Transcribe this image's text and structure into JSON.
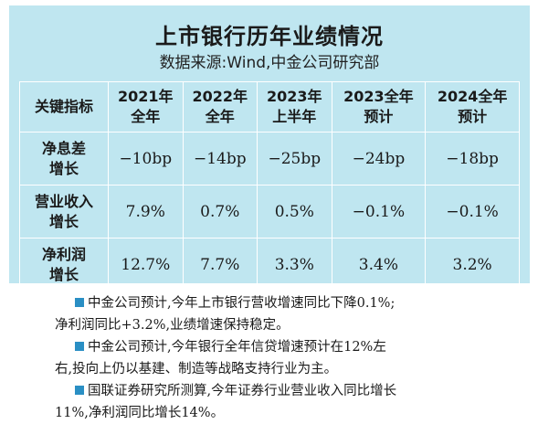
{
  "title": "上市银行历年业绩情况",
  "source": "数据来源:Wind,中金公司研究部",
  "table": {
    "header_label": "关键指标",
    "columns": [
      {
        "line1": "2021年",
        "line2": "全年"
      },
      {
        "line1": "2022年",
        "line2": "全年"
      },
      {
        "line1": "2023年",
        "line2": "上半年"
      },
      {
        "line1": "2023全年",
        "line2": "预计"
      },
      {
        "line1": "2024全年",
        "line2": "预计"
      }
    ],
    "rows": [
      {
        "line1": "净息差",
        "line2": "增长",
        "values": [
          "−10bp",
          "−14bp",
          "−25bp",
          "−24bp",
          "−18bp"
        ]
      },
      {
        "line1": "营业收入",
        "line2": "增长",
        "values": [
          "7.9%",
          "0.7%",
          "0.5%",
          "−0.1%",
          "−0.1%"
        ]
      },
      {
        "line1": "净利润",
        "line2": "增长",
        "values": [
          "12.7%",
          "7.7%",
          "3.3%",
          "3.4%",
          "3.2%"
        ]
      }
    ]
  },
  "bullets": [
    {
      "first": "中金公司预计,今年上市银行营收增速同比下降0.1%;",
      "rest": "净利润同比+3.2%,业绩增速保持稳定。"
    },
    {
      "first": "中金公司预计,今年银行全年信贷增速预计在12%左",
      "rest": "右,投向上仍以基建、制造等战略支持行业为主。"
    },
    {
      "first": "国联证券研究所测算,今年证券行业营业收入同比增长",
      "rest": "11%,净利润同比增长14%。"
    }
  ],
  "colors": {
    "panel": "#bfe6f0",
    "bullet": "#2a8fc4"
  }
}
